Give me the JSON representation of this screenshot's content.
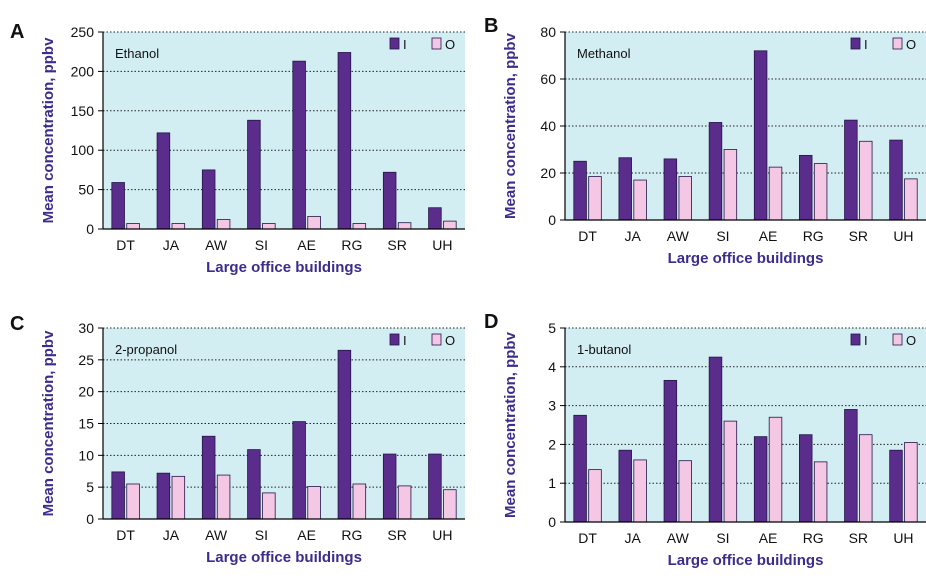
{
  "chart_data": [
    {
      "type": "bar",
      "panel_label": "A",
      "title": "Ethanol",
      "xlabel": "Large office buildings",
      "ylabel": "Mean concentration, ppbv",
      "categories": [
        "DT",
        "JA",
        "AW",
        "SI",
        "AE",
        "RG",
        "SR",
        "UH"
      ],
      "ylim": [
        0,
        250
      ],
      "yticks": [
        0,
        50,
        100,
        150,
        200,
        250
      ],
      "series": [
        {
          "name": "I",
          "values": [
            59,
            122,
            75,
            138,
            213,
            224,
            72,
            27
          ]
        },
        {
          "name": "O",
          "values": [
            7,
            7,
            12,
            7,
            16,
            7,
            8,
            10
          ]
        }
      ],
      "grid": "horizontal dotted",
      "legend_position": "top-right"
    },
    {
      "type": "bar",
      "panel_label": "B",
      "title": "Methanol",
      "xlabel": "Large office buildings",
      "ylabel": "Mean concentration, ppbv",
      "categories": [
        "DT",
        "JA",
        "AW",
        "SI",
        "AE",
        "RG",
        "SR",
        "UH"
      ],
      "ylim": [
        0,
        80
      ],
      "yticks": [
        0,
        20,
        40,
        60,
        80
      ],
      "series": [
        {
          "name": "I",
          "values": [
            25,
            26.5,
            26,
            41.5,
            72,
            27.5,
            42.5,
            34
          ]
        },
        {
          "name": "O",
          "values": [
            18.5,
            17,
            18.5,
            30,
            22.5,
            24,
            33.5,
            17.5
          ]
        }
      ],
      "grid": "horizontal dotted",
      "legend_position": "top-right"
    },
    {
      "type": "bar",
      "panel_label": "C",
      "title": "2-propanol",
      "xlabel": "Large office buildings",
      "ylabel": "Mean concentration, ppbv",
      "categories": [
        "DT",
        "JA",
        "AW",
        "SI",
        "AE",
        "RG",
        "SR",
        "UH"
      ],
      "ylim": [
        0,
        30
      ],
      "yticks": [
        0,
        5,
        10,
        15,
        20,
        25,
        30
      ],
      "series": [
        {
          "name": "I",
          "values": [
            7.4,
            7.2,
            13,
            10.9,
            15.3,
            26.5,
            10.2,
            10.2
          ]
        },
        {
          "name": "O",
          "values": [
            5.5,
            6.7,
            6.9,
            4.1,
            5.1,
            5.5,
            5.2,
            4.6
          ]
        }
      ],
      "grid": "horizontal dotted",
      "legend_position": "top-right"
    },
    {
      "type": "bar",
      "panel_label": "D",
      "title": "1-butanol",
      "xlabel": "Large office buildings",
      "ylabel": "Mean concentration, ppbv",
      "categories": [
        "DT",
        "JA",
        "AW",
        "SI",
        "AE",
        "RG",
        "SR",
        "UH"
      ],
      "ylim": [
        0,
        5
      ],
      "yticks": [
        0,
        1,
        2,
        3,
        4,
        5
      ],
      "series": [
        {
          "name": "I",
          "values": [
            2.75,
            1.85,
            3.65,
            4.25,
            2.2,
            2.25,
            2.9,
            1.85
          ]
        },
        {
          "name": "O",
          "values": [
            1.35,
            1.6,
            1.58,
            2.6,
            2.7,
            1.55,
            2.25,
            2.05
          ]
        }
      ],
      "grid": "horizontal dotted",
      "legend_position": "top-right"
    }
  ],
  "colors": {
    "plot_background": "#d3eef2",
    "series_I": "#5a2d8c",
    "series_O": "#f4c8e4",
    "bar_outline": "#241548",
    "axis_title": "#3a2d8c"
  }
}
